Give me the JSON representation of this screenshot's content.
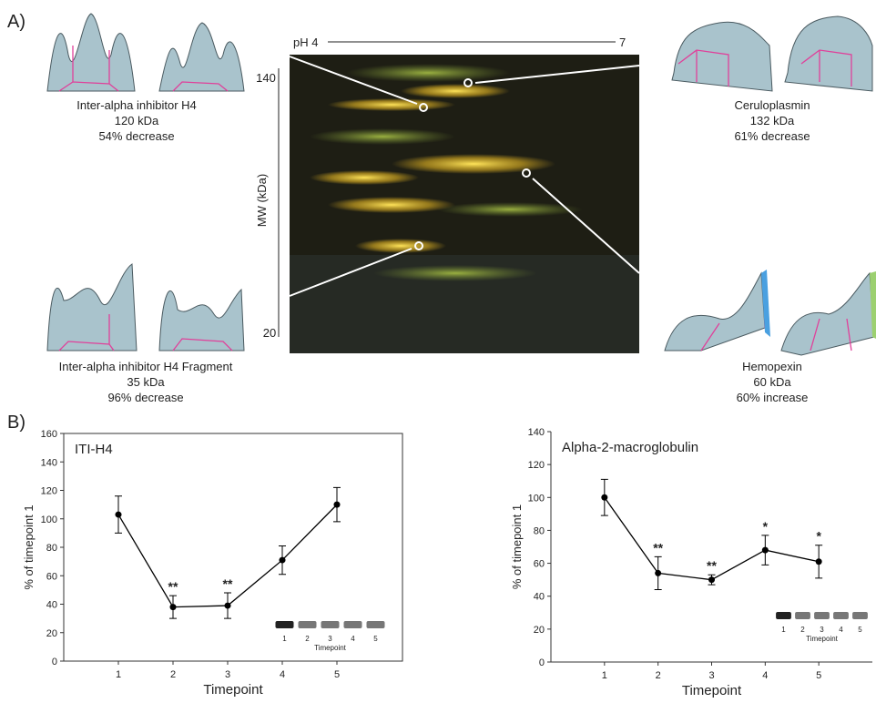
{
  "panel_labels": [
    "A)",
    "B)"
  ],
  "gel": {
    "ph_left": "pH 4",
    "ph_right": "7",
    "mw_top": "140",
    "mw_bottom": "20",
    "mw_label": "MW (kDa)"
  },
  "proteins": [
    {
      "name": "Inter-alpha inhibitor H4",
      "mass": "120 kDa",
      "change": "54% decrease"
    },
    {
      "name": "Ceruloplasmin",
      "mass": "132 kDa",
      "change": "61% decrease"
    },
    {
      "name": "Inter-alpha inhibitor H4 Fragment",
      "mass": "35 kDa",
      "change": "96% decrease"
    },
    {
      "name": "Hemopexin",
      "mass": "60 kDa",
      "change": "60% increase"
    }
  ],
  "chart_data": [
    {
      "type": "line",
      "title": "ITI-H4",
      "xlabel": "Timepoint",
      "ylabel": "% of timepoint 1",
      "box": true,
      "color": "#000000",
      "x": [
        1,
        2,
        3,
        4,
        5
      ],
      "values": [
        103,
        38,
        39,
        71,
        110
      ],
      "errors": [
        13,
        8,
        9,
        10,
        12
      ],
      "xlim": [
        0,
        6.2
      ],
      "xticks": [
        1,
        2,
        3,
        4,
        5
      ],
      "ylim": [
        0,
        160
      ],
      "yticks": [
        0,
        20,
        40,
        60,
        80,
        100,
        120,
        140,
        160
      ],
      "annotations": [
        {
          "x": 2,
          "text": "**"
        },
        {
          "x": 3,
          "text": "**"
        }
      ],
      "inset": {
        "lanes": [
          "1",
          "2",
          "3",
          "4",
          "5"
        ],
        "label": "Timepoint"
      }
    },
    {
      "type": "line",
      "title": "Alpha-2-macroglobulin",
      "xlabel": "Timepoint",
      "ylabel": "% of timepoint 1",
      "box": false,
      "color": "#000000",
      "x": [
        1,
        2,
        3,
        4,
        5
      ],
      "values": [
        100,
        54,
        50,
        68,
        61
      ],
      "errors": [
        11,
        10,
        3,
        9,
        10
      ],
      "xlim": [
        0,
        6
      ],
      "xticks": [
        1,
        2,
        3,
        4,
        5
      ],
      "ylim": [
        0,
        140
      ],
      "yticks": [
        0,
        20,
        40,
        60,
        80,
        100,
        120,
        140
      ],
      "annotations": [
        {
          "x": 2,
          "text": "**"
        },
        {
          "x": 3,
          "text": "**"
        },
        {
          "x": 4,
          "text": "*"
        },
        {
          "x": 5,
          "text": "*"
        }
      ],
      "inset": {
        "lanes": [
          "1",
          "2",
          "3",
          "4",
          "5"
        ],
        "label": "Timepoint"
      }
    }
  ]
}
